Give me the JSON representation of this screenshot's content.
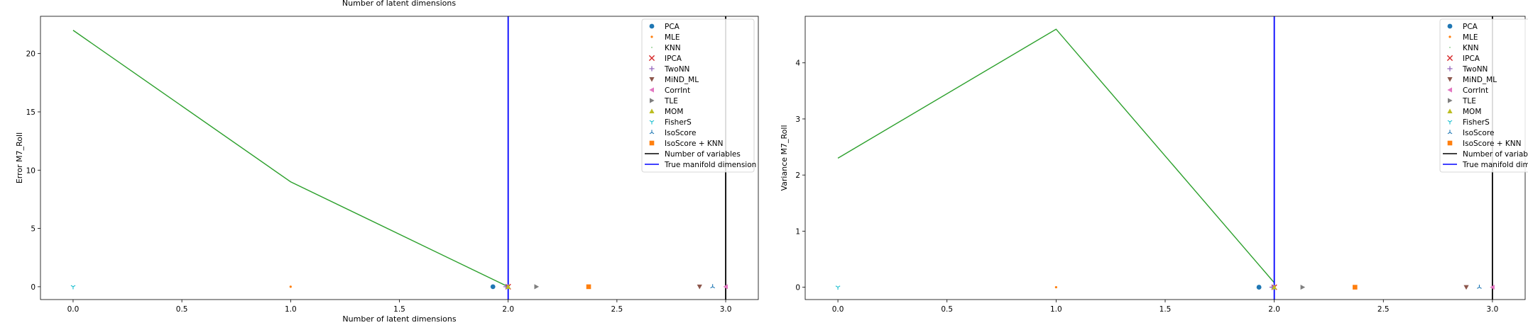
{
  "header_label": "Number of latent dimensions",
  "legend": {
    "entries": [
      {
        "label": "PCA",
        "marker": "circle",
        "color": "#1f77b4"
      },
      {
        "label": "MLE",
        "marker": "star",
        "color": "#ff7f0e"
      },
      {
        "label": "KNN",
        "marker": "pixel",
        "color": "#2ca02c"
      },
      {
        "label": "IPCA",
        "marker": "x",
        "color": "#d62728"
      },
      {
        "label": "TwoNN",
        "marker": "plus",
        "color": "#9467bd"
      },
      {
        "label": "MiND_ML",
        "marker": "triangle_down",
        "color": "#8c564b"
      },
      {
        "label": "CorrInt",
        "marker": "triangle_left",
        "color": "#e377c2"
      },
      {
        "label": "TLE",
        "marker": "triangle_right",
        "color": "#7f7f7f"
      },
      {
        "label": "MOM",
        "marker": "triangle_up",
        "color": "#bcbd22"
      },
      {
        "label": "FisherS",
        "marker": "tri_down",
        "color": "#17becf"
      },
      {
        "label": "IsoScore",
        "marker": "tri_up",
        "color": "#1f77b4"
      },
      {
        "label": "IsoScore + KNN",
        "marker": "square",
        "color": "#ff7f0e"
      },
      {
        "label": "Number of variables",
        "marker": "line",
        "color": "#000000"
      },
      {
        "label": "True manifold dimension",
        "marker": "line",
        "color": "#0000ff"
      }
    ]
  },
  "chart_data": [
    {
      "type": "scatter",
      "xlabel": "Number of latent dimensions",
      "ylabel": "Error M7_Roll",
      "xlim": [
        -0.15,
        3.15
      ],
      "ylim": [
        -1.1,
        23.2
      ],
      "xticks": [
        0.0,
        0.5,
        1.0,
        1.5,
        2.0,
        2.5,
        3.0
      ],
      "xtick_labels": [
        "0.0",
        "0.5",
        "1.0",
        "1.5",
        "2.0",
        "2.5",
        "3.0"
      ],
      "yticks": [
        0,
        5,
        10,
        15,
        20
      ],
      "ytick_labels": [
        "0",
        "5",
        "10",
        "15",
        "20"
      ],
      "grid": false,
      "legend_position": "top-right",
      "line_series": {
        "color": "#2ca02c",
        "x": [
          0,
          1,
          2
        ],
        "y": [
          22,
          9,
          0
        ]
      },
      "vlines": [
        {
          "x": 2.0,
          "color": "#0000ff"
        },
        {
          "x": 3.0,
          "color": "#000000"
        }
      ],
      "points": [
        {
          "method": "PCA",
          "x": 1.93,
          "y": 0
        },
        {
          "method": "MLE",
          "x": 1.0,
          "y": 0
        },
        {
          "method": "KNN",
          "x": 2.0,
          "y": 0
        },
        {
          "method": "IPCA",
          "x": 2.0,
          "y": 0
        },
        {
          "method": "TwoNN",
          "x": 1.99,
          "y": 0
        },
        {
          "method": "MiND_ML",
          "x": 2.88,
          "y": 0
        },
        {
          "method": "CorrInt",
          "x": 3.0,
          "y": 0
        },
        {
          "method": "TLE",
          "x": 2.13,
          "y": 0
        },
        {
          "method": "MOM",
          "x": 2.0,
          "y": 0
        },
        {
          "method": "FisherS",
          "x": 0.0,
          "y": 0
        },
        {
          "method": "IsoScore",
          "x": 2.94,
          "y": 0
        },
        {
          "method": "IsoScore + KNN",
          "x": 2.37,
          "y": 0
        }
      ]
    },
    {
      "type": "scatter",
      "xlabel": "",
      "ylabel": "Variance M7_Roll",
      "xlim": [
        -0.15,
        3.15
      ],
      "ylim": [
        -0.22,
        4.83
      ],
      "xticks": [
        0.0,
        0.5,
        1.0,
        1.5,
        2.0,
        2.5,
        3.0
      ],
      "xtick_labels": [
        "0.0",
        "0.5",
        "1.0",
        "1.5",
        "2.0",
        "2.5",
        "3.0"
      ],
      "yticks": [
        0,
        1,
        2,
        3,
        4
      ],
      "ytick_labels": [
        "0",
        "1",
        "2",
        "3",
        "4"
      ],
      "grid": false,
      "legend_position": "top-right",
      "line_series": {
        "color": "#2ca02c",
        "x": [
          0,
          1,
          2
        ],
        "y": [
          2.3,
          4.6,
          0.08
        ]
      },
      "vlines": [
        {
          "x": 2.0,
          "color": "#0000ff"
        },
        {
          "x": 3.0,
          "color": "#000000"
        }
      ],
      "points": [
        {
          "method": "PCA",
          "x": 1.93,
          "y": 0
        },
        {
          "method": "MLE",
          "x": 1.0,
          "y": 0
        },
        {
          "method": "KNN",
          "x": 2.0,
          "y": 0
        },
        {
          "method": "IPCA",
          "x": 2.0,
          "y": 0
        },
        {
          "method": "TwoNN",
          "x": 1.99,
          "y": 0
        },
        {
          "method": "MiND_ML",
          "x": 2.88,
          "y": 0
        },
        {
          "method": "CorrInt",
          "x": 3.0,
          "y": 0
        },
        {
          "method": "TLE",
          "x": 2.13,
          "y": 0
        },
        {
          "method": "MOM",
          "x": 2.0,
          "y": 0
        },
        {
          "method": "FisherS",
          "x": 0.0,
          "y": 0
        },
        {
          "method": "IsoScore",
          "x": 2.94,
          "y": 0
        },
        {
          "method": "IsoScore + KNN",
          "x": 2.37,
          "y": 0
        }
      ]
    }
  ]
}
